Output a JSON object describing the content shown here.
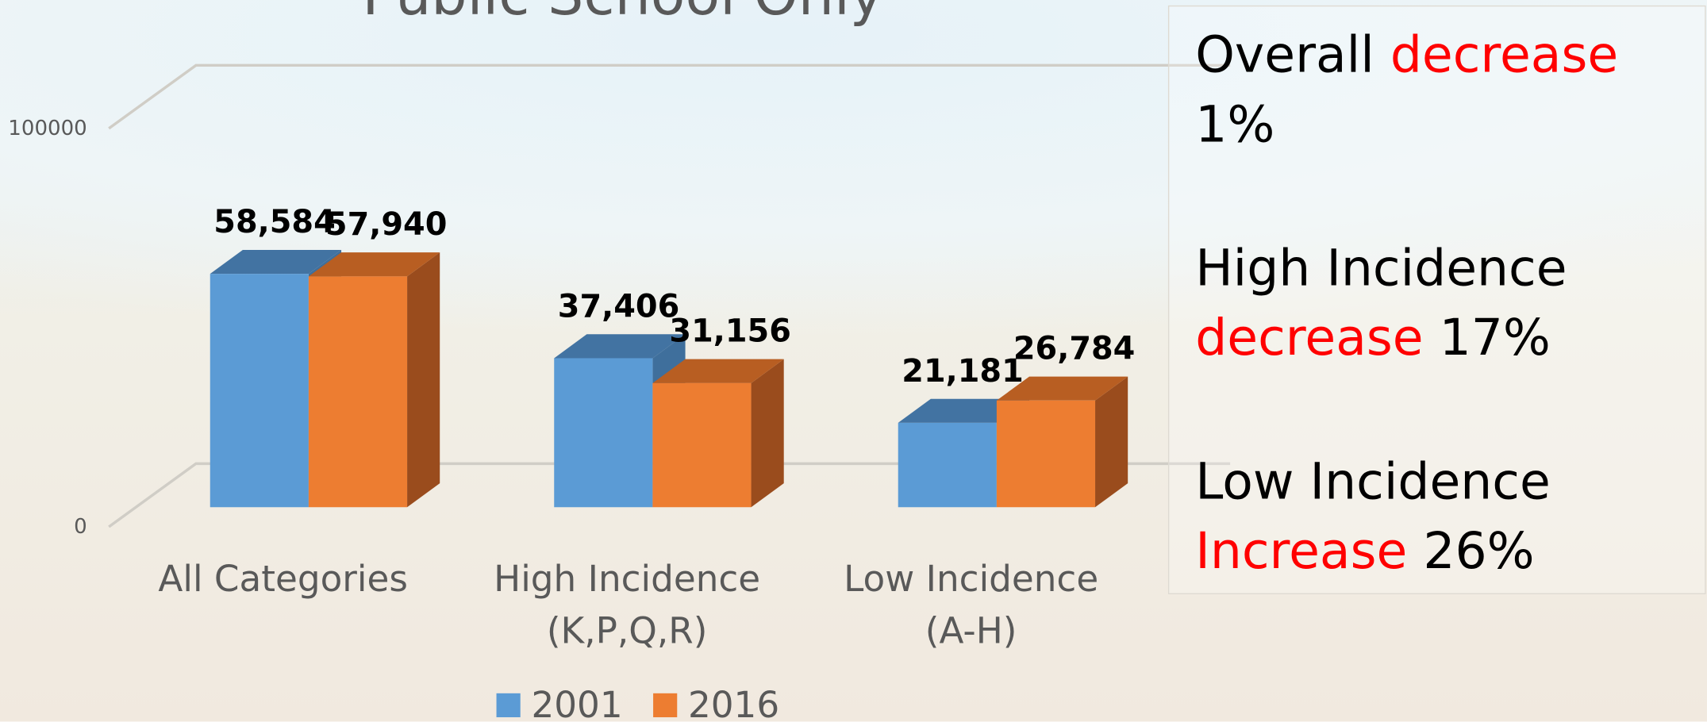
{
  "chart_data": {
    "type": "bar3d",
    "title": "Public School Only",
    "categories": [
      "All Categories",
      "High Incidence (K,P,Q,R)",
      "Low Incidence (A-H)"
    ],
    "series": [
      {
        "name": "2001",
        "color": "#5b9bd5",
        "top_color": "#4273a2",
        "side_color": "#3f6f9c",
        "values": [
          58584,
          37406,
          21181
        ],
        "value_labels": [
          "58,584",
          "37,406",
          "21,181"
        ]
      },
      {
        "name": "2016",
        "color": "#ed7d31",
        "top_color": "#b85e22",
        "side_color": "#9a4c1d",
        "values": [
          57940,
          31156,
          26784
        ],
        "value_labels": [
          "57,940",
          "31,156",
          "26,784"
        ]
      }
    ],
    "ylim": [
      0,
      100000
    ],
    "yticks": [
      0,
      100000
    ],
    "grid": true,
    "legend": "bottom",
    "annotations": [
      {
        "lead": "Overall",
        "highlight": "decrease",
        "rest": "1%"
      },
      {
        "lead": "High Incidence",
        "highlight": "decrease",
        "rest": "17%"
      },
      {
        "lead": "Low Incidence",
        "highlight": "Increase",
        "rest": "26%"
      }
    ],
    "highlight_color": "#ff0000"
  }
}
